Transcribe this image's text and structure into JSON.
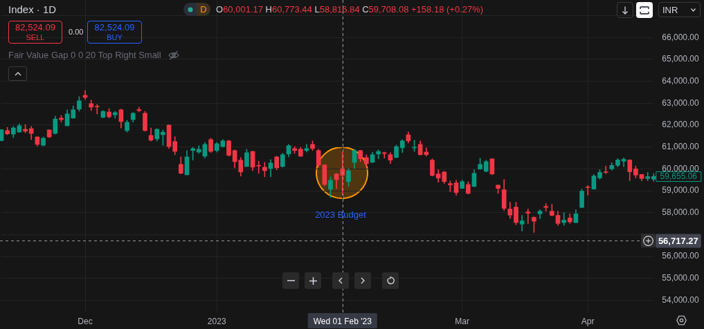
{
  "chart_data": {
    "type": "candlestick",
    "title": "Index · 1D",
    "categories": [
      null,
      null,
      null,
      null,
      null,
      null,
      null,
      null,
      null,
      null,
      null,
      null,
      null,
      null,
      "Dec",
      null,
      null,
      null,
      null,
      null,
      null,
      null,
      null,
      null,
      null,
      null,
      null,
      null,
      null,
      null,
      null,
      null,
      null,
      null,
      null,
      null,
      "2023",
      null,
      null,
      null,
      null,
      null,
      null,
      null,
      null,
      null,
      null,
      null,
      null,
      null,
      null,
      null,
      null,
      null,
      null,
      null,
      null,
      "Wed 01 Feb '23",
      null,
      null,
      null,
      null,
      null,
      null,
      null,
      null,
      null,
      null,
      null,
      null,
      null,
      null,
      null,
      null,
      null,
      null,
      null,
      "Mar",
      null,
      null,
      null,
      null,
      null,
      null,
      null,
      null,
      null,
      null,
      null,
      null,
      null,
      null,
      null,
      null,
      null,
      null,
      null,
      null,
      "Apr",
      null,
      null,
      null,
      null,
      null,
      null,
      null,
      null,
      null,
      null,
      null
    ],
    "ohlc": [
      [
        61290,
        61800,
        61280,
        61790
      ],
      [
        61750,
        61900,
        61560,
        61600
      ],
      [
        61590,
        61940,
        61430,
        61870
      ],
      [
        61680,
        62060,
        61670,
        61970
      ],
      [
        61810,
        62030,
        61650,
        61720
      ],
      [
        61840,
        61940,
        61340,
        61620
      ],
      [
        61460,
        61470,
        61050,
        61120
      ],
      [
        61080,
        61460,
        61050,
        61400
      ],
      [
        61780,
        61790,
        61430,
        61460
      ],
      [
        61620,
        62410,
        61590,
        62280
      ],
      [
        62320,
        62440,
        62130,
        62250
      ],
      [
        61970,
        62700,
        61960,
        62510
      ],
      [
        62320,
        62880,
        62310,
        62700
      ],
      [
        62730,
        63300,
        62630,
        63110
      ],
      [
        63360,
        63580,
        63170,
        63260
      ],
      [
        62980,
        63140,
        62660,
        62820
      ],
      [
        62850,
        62950,
        62510,
        62830
      ],
      [
        62350,
        62660,
        62340,
        62630
      ],
      [
        62600,
        62760,
        62320,
        62380
      ],
      [
        62470,
        62630,
        62320,
        62570
      ],
      [
        62700,
        62730,
        61870,
        62160
      ],
      [
        61750,
        62220,
        61680,
        62130
      ],
      [
        62250,
        62570,
        62130,
        62540
      ],
      [
        62710,
        62820,
        62600,
        62660
      ],
      [
        62540,
        62630,
        61720,
        61750
      ],
      [
        61530,
        61870,
        61270,
        61310
      ],
      [
        61370,
        61840,
        61270,
        61810
      ],
      [
        61560,
        61780,
        61080,
        61680
      ],
      [
        62000,
        62010,
        60930,
        61020
      ],
      [
        61250,
        61470,
        60650,
        60800
      ],
      [
        60210,
        60550,
        59770,
        59800
      ],
      [
        59730,
        60840,
        59720,
        60550
      ],
      [
        60840,
        60990,
        60400,
        60930
      ],
      [
        60770,
        61060,
        60710,
        60900
      ],
      [
        60580,
        61210,
        60490,
        61120
      ],
      [
        61340,
        61400,
        60740,
        60800
      ],
      [
        60840,
        61210,
        60770,
        61150
      ],
      [
        61020,
        61340,
        60990,
        61280
      ],
      [
        61280,
        61310,
        60580,
        60620
      ],
      [
        60840,
        60870,
        60050,
        60330
      ],
      [
        60400,
        60520,
        59670,
        59860
      ],
      [
        60110,
        60900,
        60100,
        60740
      ],
      [
        60800,
        60810,
        59920,
        60080
      ],
      [
        60150,
        60360,
        59800,
        60130
      ],
      [
        60080,
        60300,
        59640,
        59920
      ],
      [
        60020,
        60430,
        59640,
        60270
      ],
      [
        60550,
        60580,
        59960,
        60050
      ],
      [
        60110,
        60710,
        60080,
        60650
      ],
      [
        60680,
        61120,
        60550,
        61060
      ],
      [
        60930,
        61020,
        60710,
        60840
      ],
      [
        60900,
        60990,
        60570,
        60580
      ],
      [
        60840,
        61120,
        60770,
        60930
      ],
      [
        61120,
        61280,
        60840,
        60930
      ],
      [
        60840,
        60900,
        60080,
        60180
      ],
      [
        60180,
        60190,
        59230,
        59290
      ],
      [
        59070,
        59640,
        58700,
        59480
      ],
      [
        59770,
        59800,
        59100,
        59510
      ],
      [
        60001.17,
        60773.44,
        58816.84,
        59708.08
      ],
      [
        59420,
        60020,
        59200,
        59920
      ],
      [
        60300,
        60900,
        60020,
        60840
      ],
      [
        60840,
        60850,
        60330,
        60460
      ],
      [
        60520,
        60650,
        60110,
        60240
      ],
      [
        60300,
        60770,
        60290,
        60650
      ],
      [
        60680,
        60870,
        60460,
        60800
      ],
      [
        60740,
        60770,
        60490,
        60700
      ],
      [
        60650,
        60740,
        60240,
        60400
      ],
      [
        60520,
        61090,
        60510,
        61020
      ],
      [
        60960,
        61340,
        60740,
        61280
      ],
      [
        61560,
        61690,
        61180,
        61280
      ],
      [
        60960,
        61310,
        60800,
        60990
      ],
      [
        61120,
        61280,
        60620,
        60650
      ],
      [
        60770,
        60960,
        60580,
        60650
      ],
      [
        60400,
        60460,
        59670,
        59700
      ],
      [
        59770,
        59960,
        59390,
        59580
      ],
      [
        59860,
        59890,
        59330,
        59420
      ],
      [
        59330,
        59450,
        58950,
        59270
      ],
      [
        59360,
        59480,
        58790,
        58920
      ],
      [
        59110,
        59480,
        59100,
        59420
      ],
      [
        59290,
        59420,
        58850,
        58880
      ],
      [
        59200,
        59960,
        59190,
        59800
      ],
      [
        59990,
        60490,
        59980,
        60210
      ],
      [
        59890,
        60400,
        59860,
        60330
      ],
      [
        60460,
        60470,
        59730,
        59770
      ],
      [
        59260,
        59270,
        58880,
        59110
      ],
      [
        59050,
        59520,
        58100,
        58200
      ],
      [
        58170,
        58480,
        57740,
        57890
      ],
      [
        58260,
        58480,
        57450,
        57550
      ],
      [
        57480,
        57880,
        57170,
        57630
      ],
      [
        58040,
        58170,
        57500,
        57980
      ],
      [
        57790,
        57820,
        57100,
        57610
      ],
      [
        57950,
        58140,
        57730,
        58070
      ],
      [
        58290,
        58420,
        58070,
        58240
      ],
      [
        58070,
        58390,
        57850,
        57880
      ],
      [
        57880,
        58070,
        57420,
        57510
      ],
      [
        57550,
        58010,
        57420,
        57660
      ],
      [
        57760,
        57950,
        57510,
        57580
      ],
      [
        57550,
        58140,
        57540,
        57950
      ],
      [
        58240,
        59080,
        58230,
        58990
      ],
      [
        59180,
        59240,
        58800,
        59150
      ],
      [
        59080,
        59750,
        59070,
        59680
      ],
      [
        59590,
        59970,
        59530,
        59840
      ],
      [
        59870,
        60130,
        59780,
        59840
      ],
      [
        60000,
        60280,
        59940,
        60160
      ],
      [
        60160,
        60470,
        60090,
        60410
      ],
      [
        60350,
        60510,
        60090,
        60440
      ],
      [
        60410,
        60420,
        59460,
        59870
      ],
      [
        60000,
        60130,
        59590,
        59720
      ],
      [
        59750,
        59750,
        59460,
        59560
      ],
      [
        59560,
        59840,
        59460,
        59650
      ],
      [
        59530,
        59780,
        59430,
        59655
      ]
    ],
    "colors": [
      "#089981",
      "#f23645",
      "#089981",
      "#089981",
      "#f23645",
      "#f23645",
      "#f23645",
      "#089981",
      "#f23645",
      "#089981",
      "#f23645",
      "#089981",
      "#089981",
      "#089981",
      "#f23645",
      "#f23645",
      "#f23645",
      "#089981",
      "#f23645",
      "#089981",
      "#f23645",
      "#089981",
      "#089981",
      "#f23645",
      "#f23645",
      "#f23645",
      "#089981",
      "#089981",
      "#f23645",
      "#f23645",
      "#f23645",
      "#089981",
      "#089981",
      "#089981",
      "#089981",
      "#f23645",
      "#089981",
      "#089981",
      "#f23645",
      "#f23645",
      "#f23645",
      "#089981",
      "#f23645",
      "#f23645",
      "#f23645",
      "#089981",
      "#f23645",
      "#089981",
      "#089981",
      "#f23645",
      "#f23645",
      "#089981",
      "#f23645",
      "#f23645",
      "#f23645",
      "#089981",
      "#f23645",
      "#f23645",
      "#089981",
      "#089981",
      "#f23645",
      "#f23645",
      "#089981",
      "#089981",
      "#f23645",
      "#f23645",
      "#089981",
      "#089981",
      "#f23645",
      "#089981",
      "#f23645",
      "#f23645",
      "#f23645",
      "#f23645",
      "#f23645",
      "#f23645",
      "#f23645",
      "#089981",
      "#f23645",
      "#089981",
      "#089981",
      "#089981",
      "#f23645",
      "#f23645",
      "#f23645",
      "#f23645",
      "#f23645",
      "#089981",
      "#f23645",
      "#f23645",
      "#089981",
      "#f23645",
      "#f23645",
      "#f23645",
      "#089981",
      "#f23645",
      "#089981",
      "#089981",
      "#f23645",
      "#089981",
      "#089981",
      "#f23645",
      "#089981",
      "#089981",
      "#089981",
      "#f23645",
      "#f23645",
      "#f23645",
      "#089981",
      "#089981"
    ],
    "ylim": [
      53450,
      67710
    ],
    "yticks": [
      {
        "value": 54000,
        "label": "54,000.00"
      },
      {
        "value": 55000,
        "label": "55,000.00"
      },
      {
        "value": 56000,
        "label": "56,000.00"
      },
      {
        "value": 57000,
        "label": null
      },
      {
        "value": 58000,
        "label": "58,000.00"
      },
      {
        "value": 59000,
        "label": "59,000.00"
      },
      {
        "value": 60000,
        "label": "60,000.00"
      },
      {
        "value": 61000,
        "label": "61,000.00"
      },
      {
        "value": 62000,
        "label": "62,000.00"
      },
      {
        "value": 63000,
        "label": "63,000.00"
      },
      {
        "value": 64000,
        "label": "64,000.00"
      },
      {
        "value": 65000,
        "label": "65,000.00"
      },
      {
        "value": 66000,
        "label": "66,000.00"
      },
      {
        "value": 67000,
        "label": null
      }
    ],
    "grid": true,
    "ref_lines": [
      {
        "axis": "x",
        "value": "Wed 01 Feb '23",
        "color": "#9598a1",
        "line_style": "dashed"
      },
      {
        "axis": "y",
        "value": 56717.27,
        "label": "56,717.27",
        "color": "#9598a1",
        "line_style": "dashed"
      }
    ],
    "annotations": [
      "D",
      "O60,001.17 H60,773.44 L58,816.84 C59,708.08 +158.18 (+0.27%)",
      "82,524.09",
      "SELL",
      "0.00",
      "82,524.09",
      "BUY",
      "Fair Value Gap 0 0 20 Top Right Small",
      "INR",
      "2023 Budget",
      "59,655.06"
    ]
  }
}
